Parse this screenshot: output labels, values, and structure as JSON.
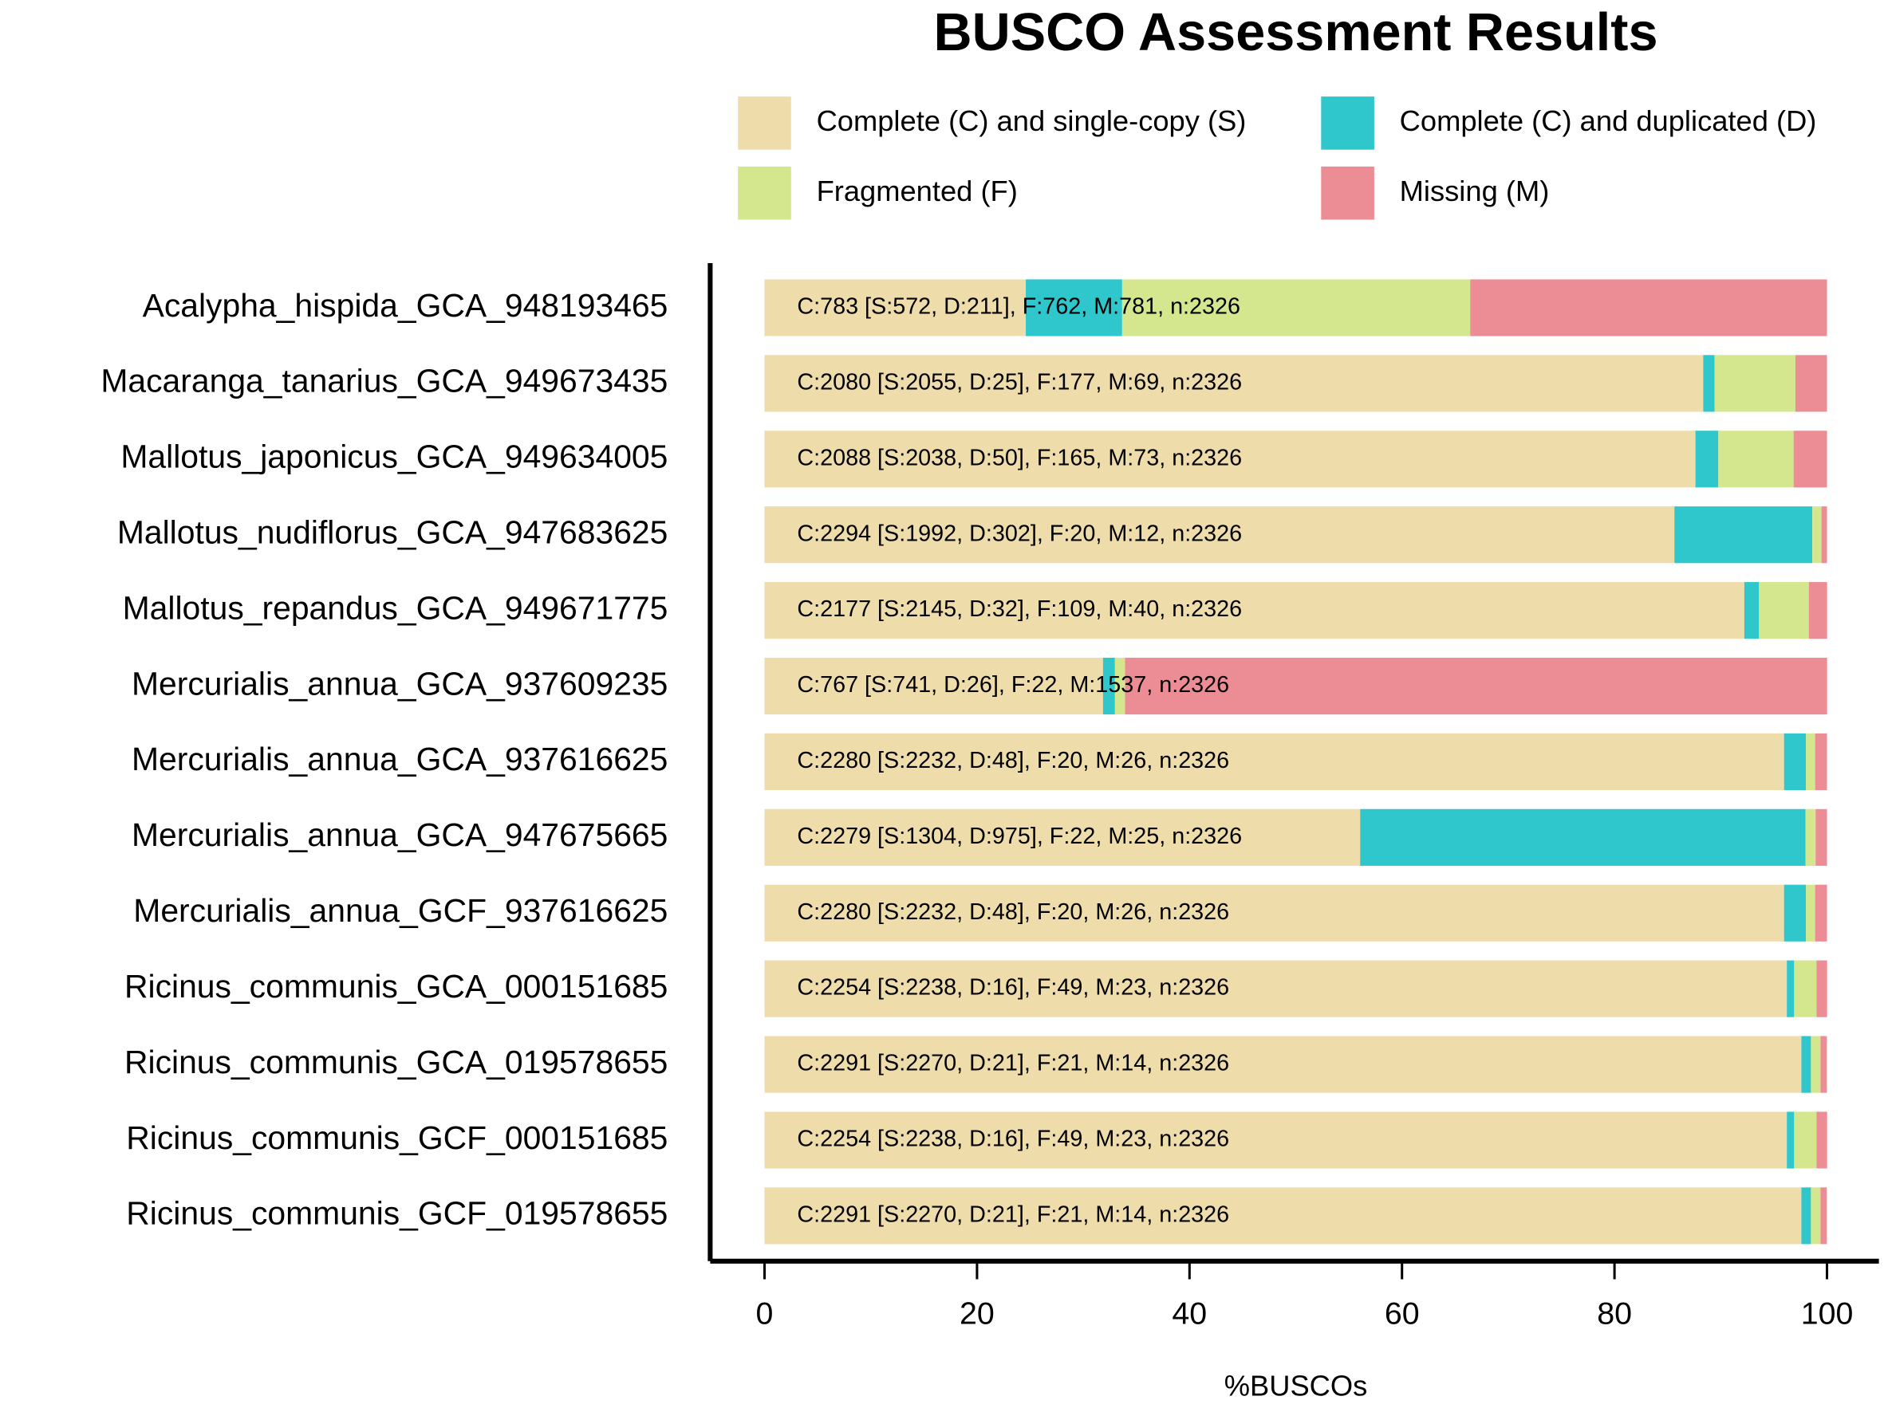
{
  "chart_data": {
    "type": "stacked-barh",
    "title": "BUSCO Assessment Results",
    "x_label": "%BUSCOs",
    "categories": [
      "Acalypha_hispida_GCA_948193465",
      "Macaranga_tanarius_GCA_949673435",
      "Mallotus_japonicus_GCA_949634005",
      "Mallotus_nudiflorus_GCA_947683625",
      "Mallotus_repandus_GCA_949671775",
      "Mercurialis_annua_GCA_937609235",
      "Mercurialis_annua_GCA_937616625",
      "Mercurialis_annua_GCA_947675665",
      "Mercurialis_annua_GCF_937616625",
      "Ricinus_communis_GCA_000151685",
      "Ricinus_communis_GCA_019578655",
      "Ricinus_communis_GCF_000151685",
      "Ricinus_communis_GCF_019578655"
    ],
    "series": [
      {
        "name": "Complete (C) and single-copy (S)",
        "color": "#eedcab",
        "values": [
          24.59,
          88.35,
          87.62,
          85.64,
          92.22,
          31.86,
          95.96,
          56.06,
          95.96,
          96.22,
          97.59,
          96.22,
          97.59
        ]
      },
      {
        "name": "Complete (C) and duplicated (D)",
        "color": "#2fc6cc",
        "values": [
          9.07,
          1.07,
          2.15,
          12.98,
          1.38,
          1.12,
          2.06,
          41.92,
          2.06,
          0.69,
          0.9,
          0.69,
          0.9
        ]
      },
      {
        "name": "Fragmented (F)",
        "color": "#d4e68e",
        "values": [
          32.76,
          7.61,
          7.09,
          0.86,
          4.69,
          0.95,
          0.86,
          0.95,
          0.86,
          2.11,
          0.9,
          2.11,
          0.9
        ]
      },
      {
        "name": "Missing (M)",
        "color": "#ec8d95",
        "values": [
          33.58,
          2.97,
          3.14,
          0.52,
          1.72,
          66.08,
          1.12,
          1.07,
          1.12,
          0.99,
          0.6,
          0.99,
          0.6
        ]
      }
    ],
    "annotations": [
      "C:783 [S:572, D:211], F:762, M:781, n:2326",
      "C:2080 [S:2055, D:25], F:177, M:69, n:2326",
      "C:2088 [S:2038, D:50], F:165, M:73, n:2326",
      "C:2294 [S:1992, D:302], F:20, M:12, n:2326",
      "C:2177 [S:2145, D:32], F:109, M:40, n:2326",
      "C:767 [S:741, D:26], F:22, M:1537, n:2326",
      "C:2280 [S:2232, D:48], F:20, M:26, n:2326",
      "C:2279 [S:1304, D:975], F:22, M:25, n:2326",
      "C:2280 [S:2232, D:48], F:20, M:26, n:2326",
      "C:2254 [S:2238, D:16], F:49, M:23, n:2326",
      "C:2291 [S:2270, D:21], F:21, M:14, n:2326",
      "C:2254 [S:2238, D:16], F:49, M:23, n:2326",
      "C:2291 [S:2270, D:21], F:21, M:14, n:2326"
    ],
    "xlim": [
      0,
      100
    ],
    "xticks": [
      0,
      20,
      40,
      60,
      80,
      100
    ],
    "legend": "top"
  }
}
